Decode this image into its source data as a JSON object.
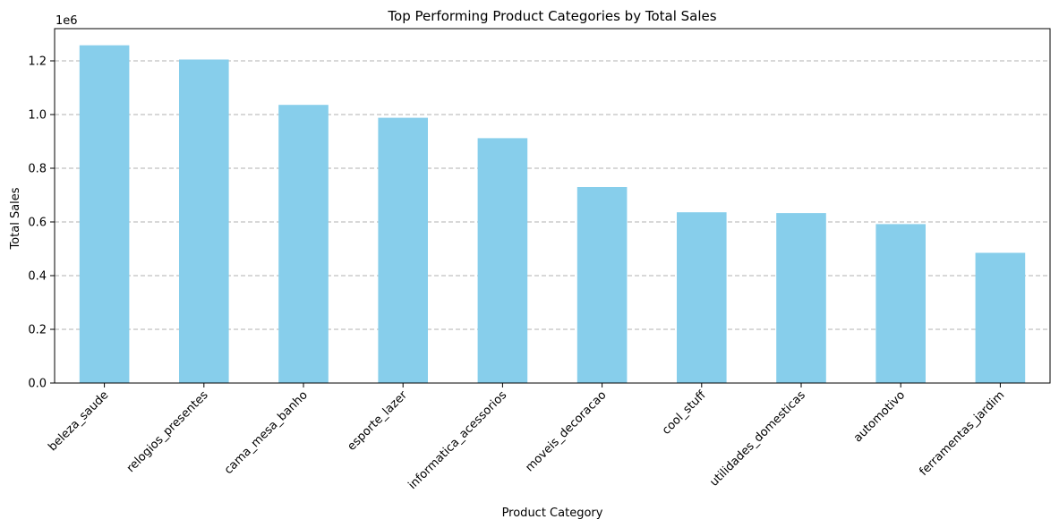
{
  "chart_data": {
    "type": "bar",
    "title": "Top Performing Product Categories by Total Sales",
    "xlabel": "Product Category",
    "ylabel": "Total Sales",
    "y_offset_label": "1e6",
    "categories": [
      "beleza_saude",
      "relogios_presentes",
      "cama_mesa_banho",
      "esporte_lazer",
      "informatica_acessorios",
      "moveis_decoracao",
      "cool_stuff",
      "utilidades_domesticas",
      "automotivo",
      "ferramentas_jardim"
    ],
    "values": [
      1258000,
      1205000,
      1036000,
      988000,
      912000,
      730000,
      636000,
      633000,
      592000,
      485000
    ],
    "ylim": [
      0,
      1320000
    ],
    "yticks": [
      0,
      200000,
      400000,
      600000,
      800000,
      1000000,
      1200000
    ],
    "ytick_labels": [
      "0.0",
      "0.2",
      "0.4",
      "0.6",
      "0.8",
      "1.0",
      "1.2"
    ],
    "grid": "y-dashed",
    "bar_color": "#87ceeb",
    "xtick_rotation": 45
  }
}
